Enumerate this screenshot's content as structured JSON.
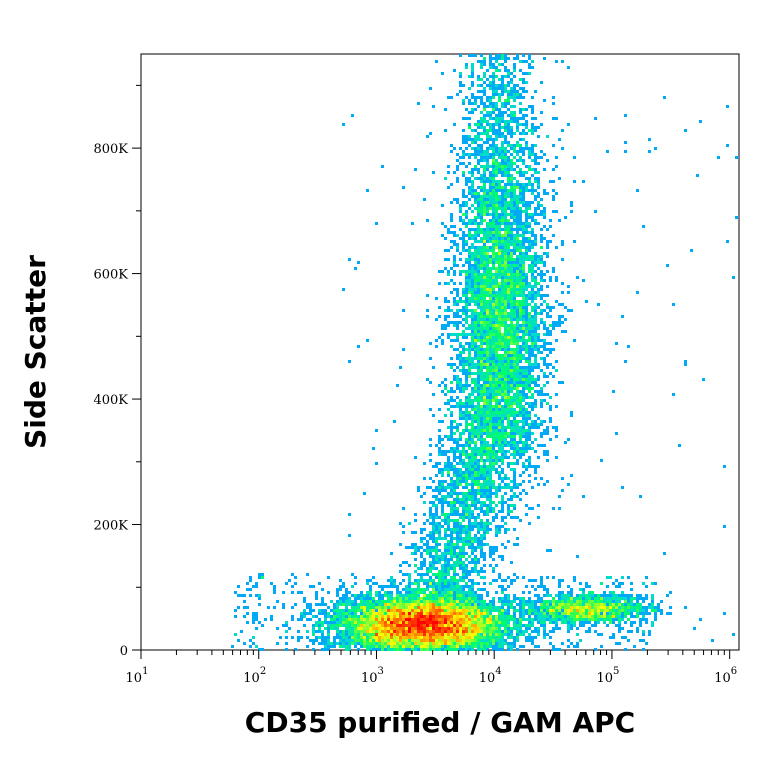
{
  "chart_data": {
    "type": "scatter",
    "rendering": "density pseudocolor (blue-cyan-green-yellow-red)",
    "title": "",
    "xlabel": "CD35 purified / GAM APC",
    "ylabel": "Side Scatter",
    "x_scale": "log",
    "xlim": [
      10,
      1200000
    ],
    "ylim": [
      0,
      950000
    ],
    "x_ticks": [
      {
        "value": 10,
        "base": "10",
        "exp": "1"
      },
      {
        "value": 100,
        "base": "10",
        "exp": "2"
      },
      {
        "value": 1000,
        "base": "10",
        "exp": "3"
      },
      {
        "value": 10000,
        "base": "10",
        "exp": "4"
      },
      {
        "value": 100000,
        "base": "10",
        "exp": "5"
      },
      {
        "value": 1000000,
        "base": "10",
        "exp": "6"
      }
    ],
    "y_ticks": [
      {
        "value": 0,
        "label": "0"
      },
      {
        "value": 200000,
        "label": "200K"
      },
      {
        "value": 400000,
        "label": "400K"
      },
      {
        "value": 600000,
        "label": "600K"
      },
      {
        "value": 800000,
        "label": "800K"
      }
    ],
    "populations": [
      {
        "name": "",
        "x_center": 2500,
        "y_center": 40000,
        "x_spread_decades": 0.35,
        "y_spread": 22000,
        "density": "highest"
      },
      {
        "name": "",
        "x_center": 11000,
        "y_center": 530000,
        "x_spread_decades": 0.2,
        "y_spread": 130000,
        "density": "medium"
      },
      {
        "name": "",
        "x_center": 60000,
        "y_center": 65000,
        "x_spread_decades": 0.25,
        "y_spread": 12000,
        "density": "low"
      }
    ],
    "colors": {
      "low": "#0000cc",
      "mid_low": "#00c8ff",
      "mid": "#00ff66",
      "mid_high": "#ffff00",
      "high": "#ff0000"
    },
    "grid": false,
    "legend": "none"
  }
}
